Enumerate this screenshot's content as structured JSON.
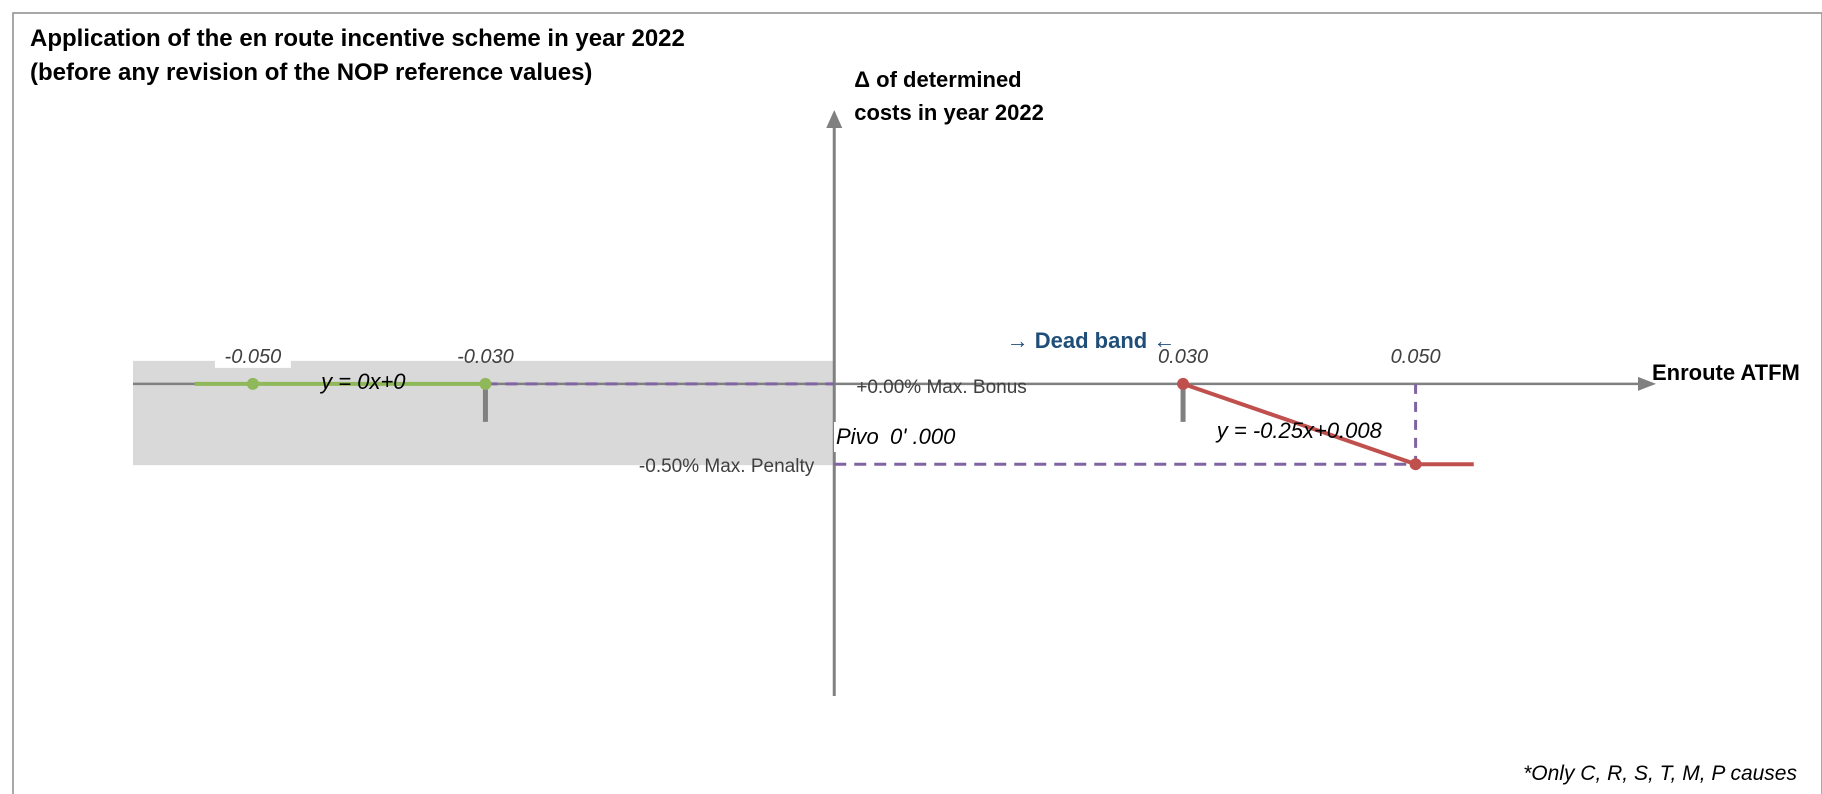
{
  "chart_data": {
    "type": "line",
    "title_line1": "Application of the en route incentive scheme in year 2022",
    "title_line2": "(before any revision of the NOP reference values)",
    "xlabel": "Enroute ATFM",
    "ylabel_line1": "Δ of determined",
    "ylabel_line2": "costs in year 2022",
    "xlim": [
      -0.061,
      0.065
    ],
    "ylim": [
      -0.01968,
      0.01705
    ],
    "tick_labels": [
      "-0.050",
      "-0.030",
      "0.030",
      "0.050"
    ],
    "tick_values": [
      -0.05,
      -0.03,
      0.03,
      0.05
    ],
    "series": [
      {
        "name": "bonus",
        "color": "#8fb85a",
        "x": [
          -0.055,
          -0.05,
          -0.03
        ],
        "y": [
          0,
          0,
          0
        ],
        "equation": "y = 0x+0"
      },
      {
        "name": "penalty",
        "color": "#c0504d",
        "x": [
          0.03,
          0.05,
          0.055
        ],
        "y": [
          0,
          -0.005,
          -0.005
        ],
        "equation": "y = -0.25x+0.008"
      }
    ],
    "reference_lines": {
      "max_bonus": {
        "y": 0,
        "label": "+0.00% Max. Bonus"
      },
      "max_penalty": {
        "y": -0.005,
        "label": "-0.50% Max. Penalty"
      }
    },
    "pivot_label": "Pivo",
    "pivot_value": "0' .000",
    "dead_band_label": "→ Dead band ←",
    "footnote": "*Only C, R, S, T, M, P causes",
    "colors": {
      "axis": "#808080",
      "shading": "#d9d9d9",
      "dashed": "#8064a2",
      "dead_band": "#1f4e79"
    }
  }
}
